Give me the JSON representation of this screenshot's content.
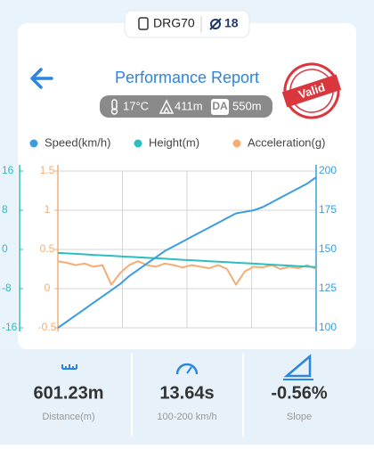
{
  "header": {
    "device": "DRG70",
    "satellites": "18"
  },
  "report": {
    "title": "Performance Report",
    "stamp": "Valid",
    "temperature": "17°C",
    "altitude": "411m",
    "da_badge": "DA",
    "density_altitude": "550m"
  },
  "chart_data": {
    "type": "line",
    "ylim": [
      -16,
      16
    ],
    "yticks": [
      16,
      8,
      0,
      -8,
      -16
    ],
    "ycolor": "#2bbfbf",
    "y3lim": [
      -0.5,
      1.5
    ],
    "y3ticks": [
      1.5,
      1,
      0.5,
      0,
      -0.5
    ],
    "y3color": "#f5ad74",
    "y2lim": [
      100,
      200
    ],
    "y2ticks": [
      200,
      175,
      150,
      125,
      100
    ],
    "y2color": "#3a9de0",
    "grid": true,
    "series": [
      {
        "name": "Speed(km/h)",
        "color": "#3a9de0",
        "axis": "y2",
        "values": [
          100,
          104,
          108,
          112,
          116,
          120,
          124,
          128,
          133,
          137,
          141,
          145,
          149,
          152,
          155,
          158,
          161,
          164,
          167,
          170,
          173,
          174,
          175,
          177,
          180,
          183,
          186,
          189,
          192,
          196
        ]
      },
      {
        "name": "Height(m)",
        "color": "#2bbfbf",
        "axis": "y",
        "values": [
          -0.7,
          -0.8,
          -0.9,
          -1.0,
          -1.1,
          -1.2,
          -1.3,
          -1.4,
          -1.5,
          -1.6,
          -1.7,
          -1.8,
          -1.9,
          -2.0,
          -2.1,
          -2.2,
          -2.3,
          -2.4,
          -2.5,
          -2.6,
          -2.7,
          -2.8,
          -2.9,
          -3.0,
          -3.1,
          -3.2,
          -3.3,
          -3.4,
          -3.5,
          -3.6
        ]
      },
      {
        "name": "Acceleration(g)",
        "color": "#f5ad74",
        "axis": "y3",
        "values": [
          0.35,
          0.33,
          0.3,
          0.32,
          0.28,
          0.3,
          0.05,
          0.2,
          0.3,
          0.35,
          0.3,
          0.28,
          0.32,
          0.3,
          0.27,
          0.3,
          0.28,
          0.26,
          0.3,
          0.25,
          0.05,
          0.22,
          0.28,
          0.27,
          0.3,
          0.25,
          0.28,
          0.26,
          0.3,
          0.25
        ]
      }
    ]
  },
  "stats": [
    {
      "value": "601.23m",
      "label": "Distance(m)"
    },
    {
      "value": "13.64s",
      "label": "100-200 km/h"
    },
    {
      "value": "-0.56%",
      "label": "Slope"
    }
  ]
}
